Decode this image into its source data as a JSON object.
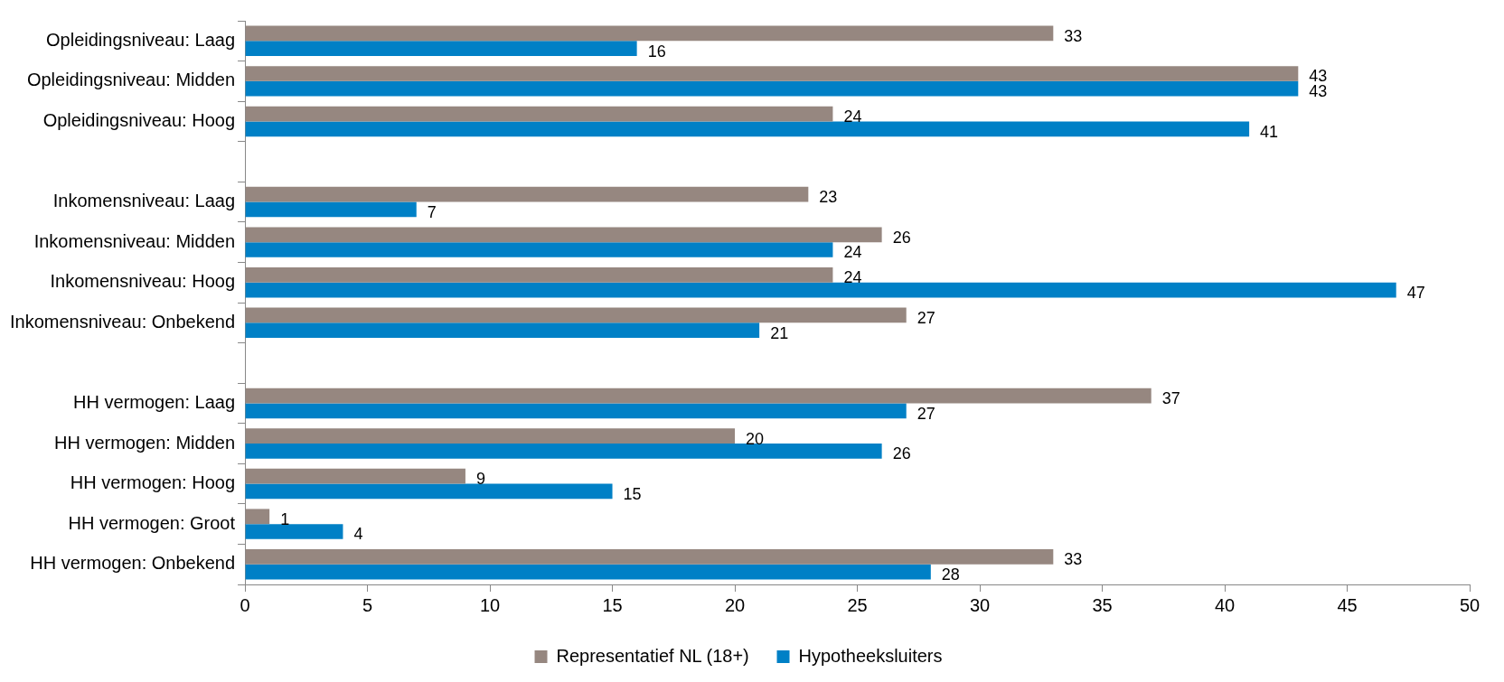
{
  "chart_data": {
    "type": "bar",
    "orientation": "horizontal",
    "categories": [
      "Opleidingsniveau: Laag",
      "Opleidingsniveau: Midden",
      "Opleidingsniveau: Hoog",
      null,
      "Inkomensniveau: Laag",
      "Inkomensniveau: Midden",
      "Inkomensniveau: Hoog",
      "Inkomensniveau: Onbekend",
      null,
      "HH vermogen: Laag",
      "HH vermogen: Midden",
      "HH vermogen: Hoog",
      "HH vermogen: Groot",
      "HH vermogen: Onbekend"
    ],
    "series": [
      {
        "name": "Representatief NL (18+)",
        "color": "#968780",
        "values": [
          33,
          43,
          24,
          null,
          23,
          26,
          24,
          27,
          null,
          37,
          20,
          9,
          1,
          33
        ]
      },
      {
        "name": "Hypotheeksluiters",
        "color": "#0080c6",
        "values": [
          16,
          43,
          41,
          null,
          7,
          24,
          47,
          21,
          null,
          27,
          26,
          15,
          4,
          28
        ]
      }
    ],
    "xlim": [
      0,
      50
    ],
    "xticks": [
      0,
      5,
      10,
      15,
      20,
      25,
      30,
      35,
      40,
      45,
      50
    ],
    "data_labels": true,
    "grid": false,
    "legend": "bottom"
  }
}
